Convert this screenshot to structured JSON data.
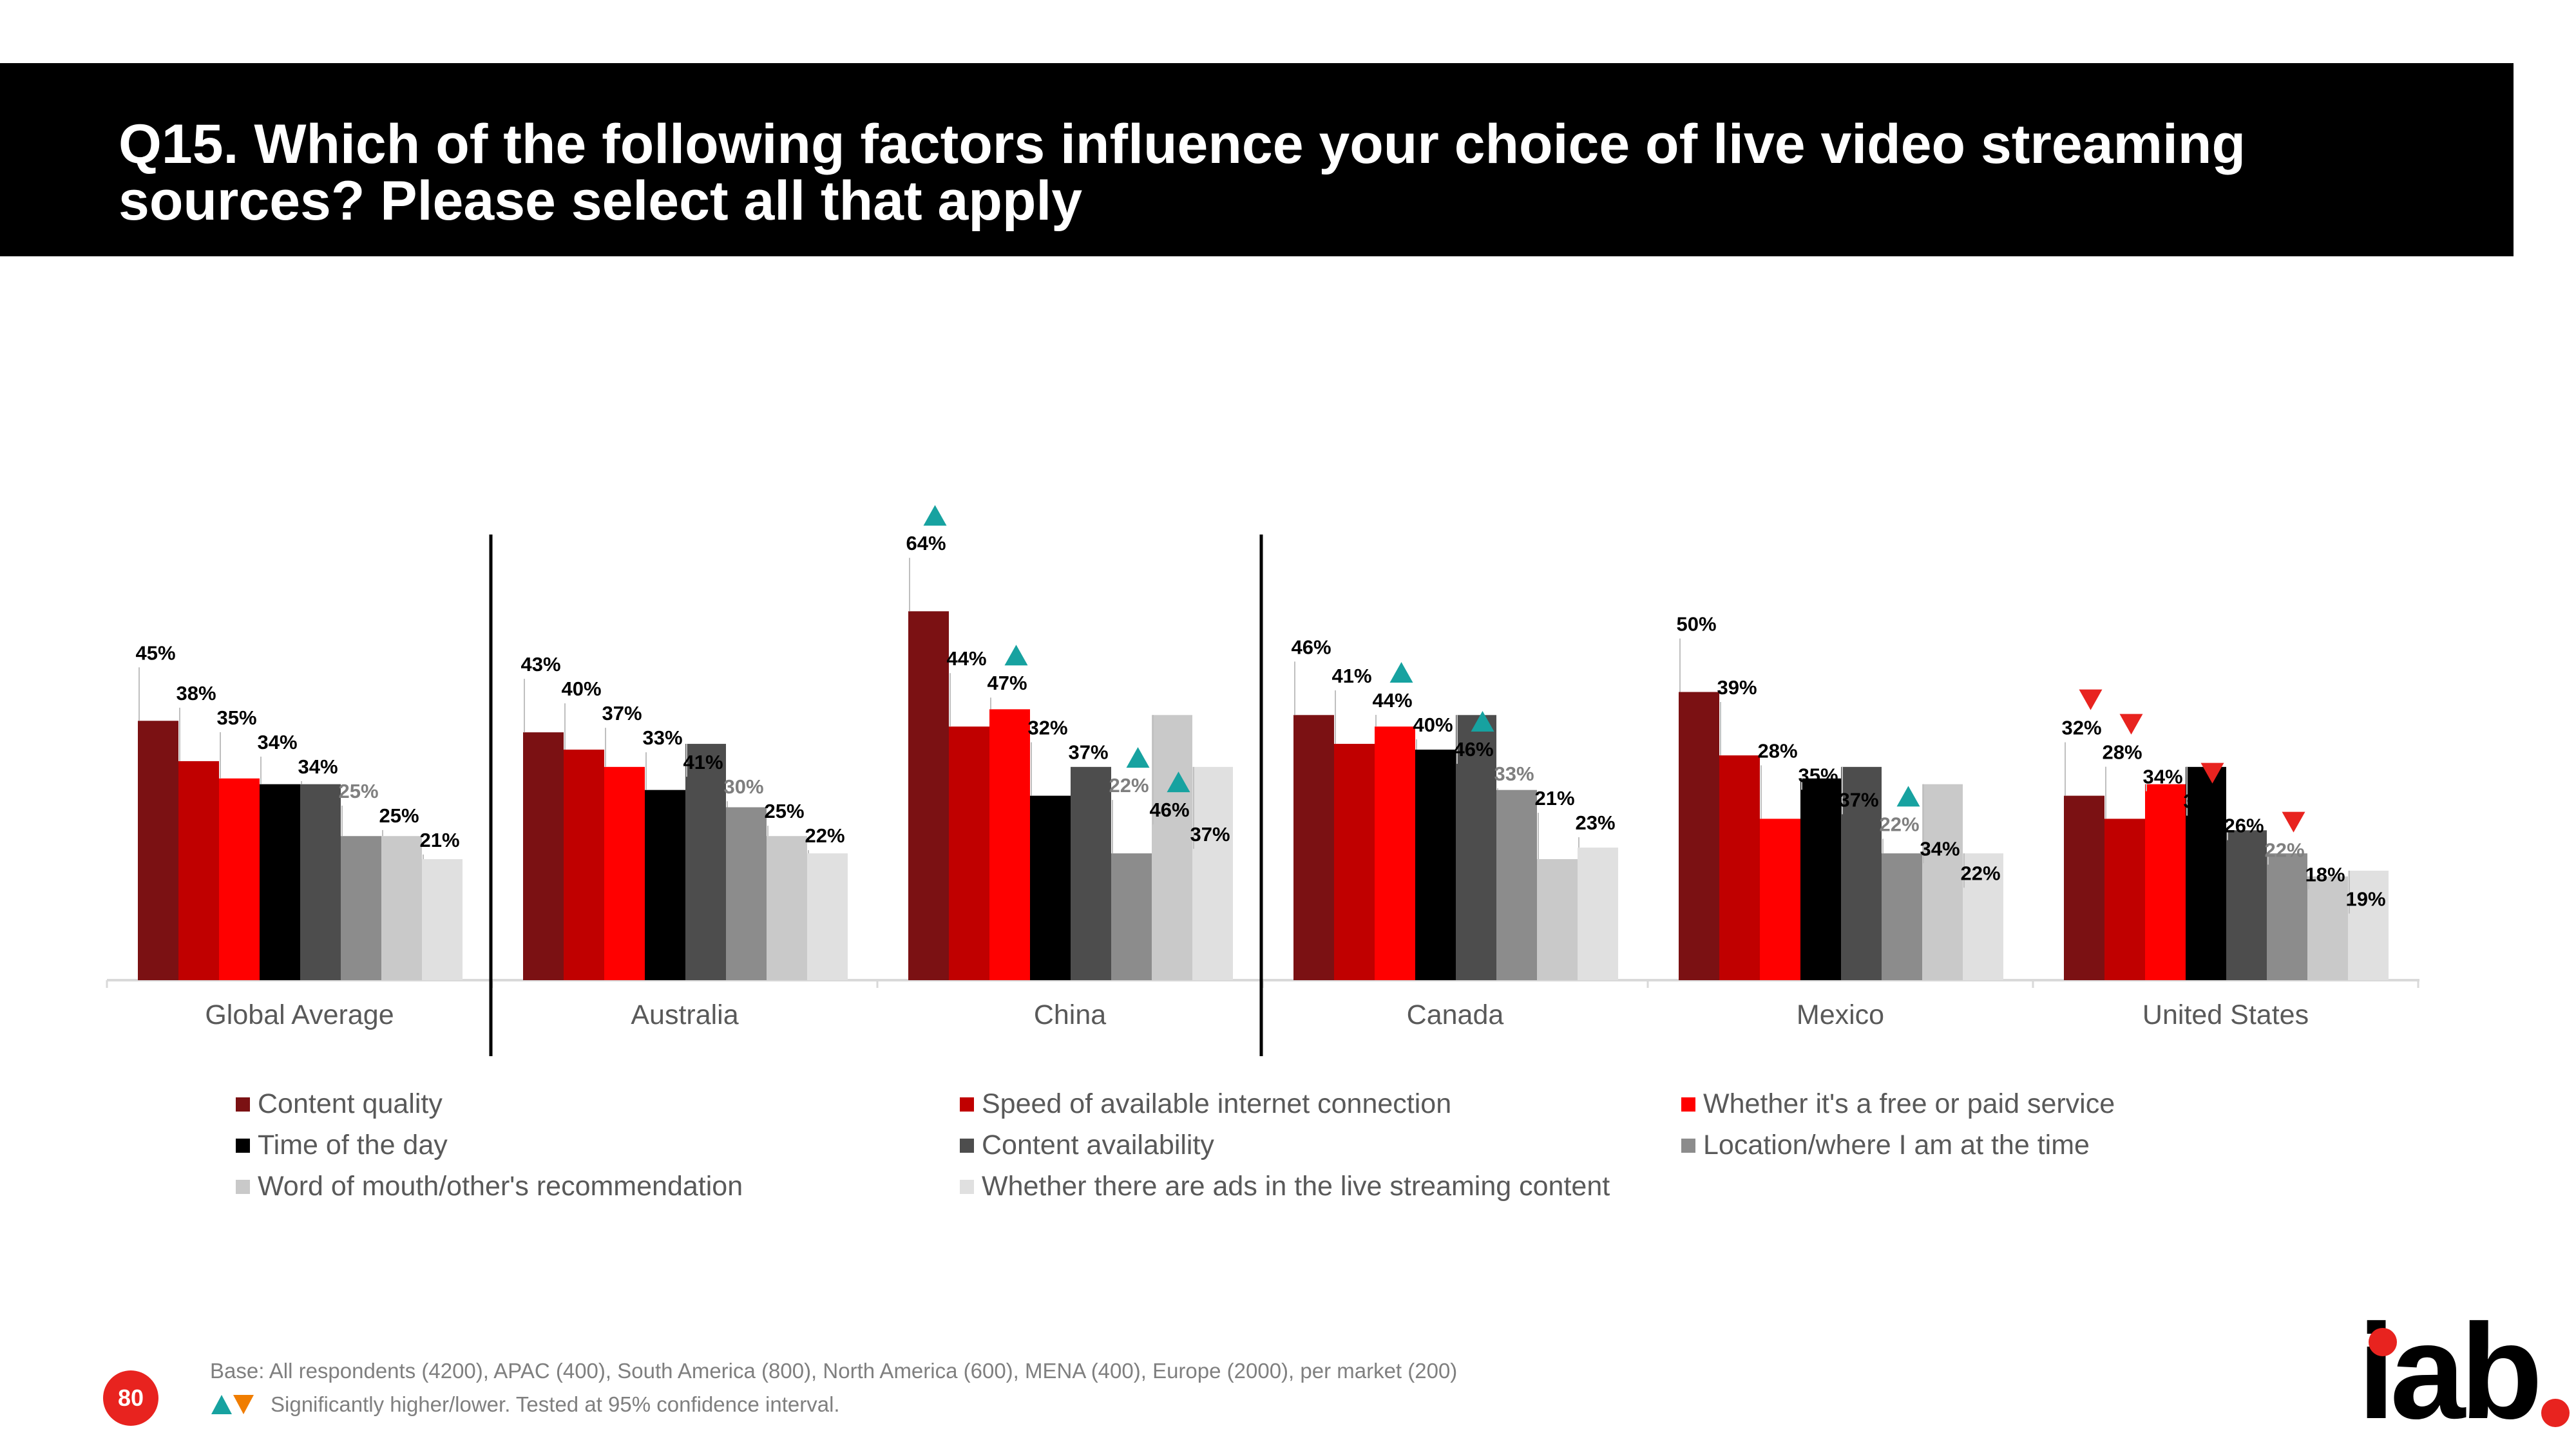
{
  "title": "Q15. Which of the following factors influence your choice of live video streaming sources? Please select all that apply",
  "page_number": "80",
  "logo_text": "iab",
  "notes": {
    "base": "Base: All respondents (4200), APAC (400), South America (800), North America (600), MENA (400), Europe (2000), per market (200)",
    "significance": "Significantly higher/lower. Tested at 95% confidence interval."
  },
  "colors": {
    "up_marker": "#17a2a0",
    "down_marker": "#e8231f",
    "page_badge": "#e8231f"
  },
  "chart_data": {
    "type": "bar",
    "title": "",
    "xlabel": "",
    "ylabel": "",
    "ylim": [
      0,
      100
    ],
    "grid": false,
    "legend_position": "bottom",
    "categories": [
      "Global Average",
      "Australia",
      "China",
      "Canada",
      "Mexico",
      "United States"
    ],
    "series": [
      {
        "name": "Content quality",
        "color": "#7b1113",
        "values": [
          45,
          43,
          64,
          46,
          50,
          32
        ],
        "markers": [
          "",
          "",
          "up",
          "",
          "",
          "down"
        ]
      },
      {
        "name": "Speed of available internet connection",
        "color": "#c00000",
        "values": [
          38,
          40,
          44,
          41,
          39,
          28
        ],
        "markers": [
          "",
          "",
          "",
          "",
          "",
          "down"
        ]
      },
      {
        "name": "Whether it's a free or paid service",
        "color": "#ff0000",
        "values": [
          35,
          37,
          47,
          44,
          28,
          34
        ],
        "markers": [
          "",
          "",
          "up",
          "up",
          "",
          ""
        ]
      },
      {
        "name": "Time of the day",
        "color": "#000000",
        "values": [
          34,
          33,
          32,
          40,
          35,
          37
        ],
        "markers": [
          "",
          "",
          "",
          "",
          "",
          "down"
        ]
      },
      {
        "name": "Content availability",
        "color": "#4d4d4d",
        "values": [
          34,
          41,
          37,
          46,
          37,
          26
        ],
        "markers": [
          "",
          "",
          "",
          "up",
          "",
          ""
        ]
      },
      {
        "name": "Location/where I am at the time",
        "color": "#8c8c8c",
        "values": [
          25,
          30,
          22,
          33,
          22,
          22
        ],
        "markers": [
          "",
          "",
          "up",
          "",
          "up",
          "down"
        ]
      },
      {
        "name": "Word of mouth/other's recommendation",
        "color": "#c9c9c9",
        "values": [
          25,
          25,
          46,
          21,
          34,
          18
        ],
        "markers": [
          "",
          "",
          "up",
          "",
          "",
          ""
        ]
      },
      {
        "name": "Whether there are ads in the live streaming content",
        "color": "#e0e0e0",
        "values": [
          21,
          22,
          37,
          23,
          22,
          19
        ],
        "markers": [
          "",
          "",
          "",
          "",
          "",
          ""
        ]
      }
    ],
    "group_separators_after": [
      "Global Average",
      "China"
    ]
  }
}
